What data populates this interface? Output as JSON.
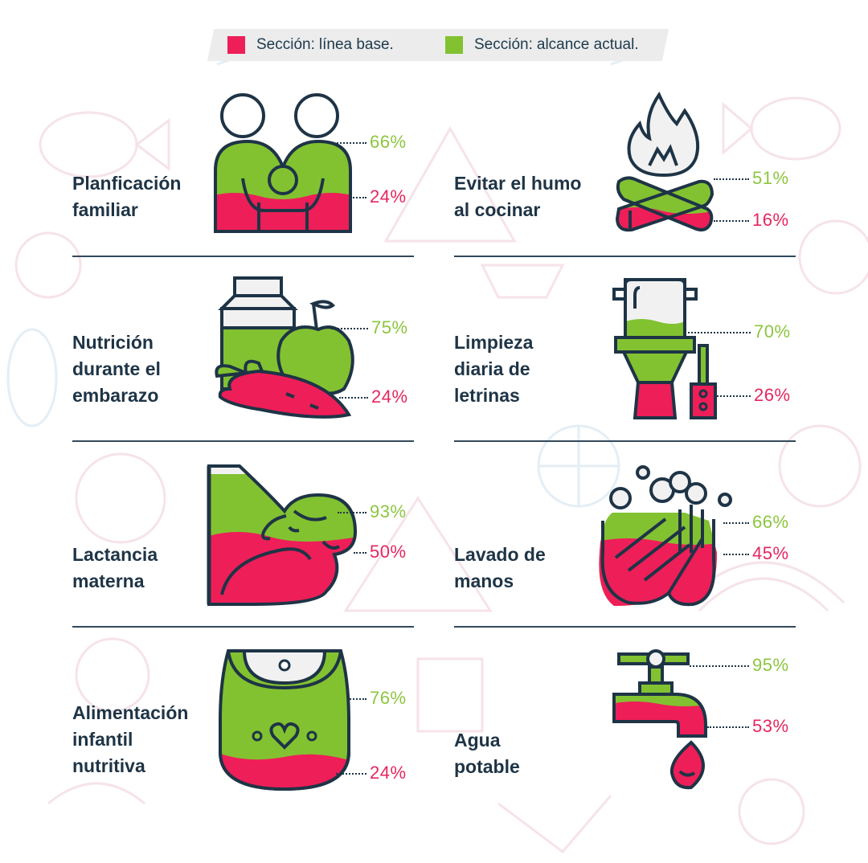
{
  "legend": [
    {
      "prefix": "Sección:",
      "rest": "línea base.",
      "color": "#ee1e58"
    },
    {
      "prefix": "Sección:",
      "rest": "alcance actual.",
      "color": "#82c231"
    }
  ],
  "colors": {
    "baseline": "#ee1e58",
    "current": "#82c231",
    "outline": "#1e3446",
    "baseline_text": "#e6265f",
    "current_text": "#8cc63f"
  },
  "chart_data": {
    "type": "bar",
    "series": [
      {
        "name": "línea base",
        "values": [
          24,
          16,
          24,
          26,
          50,
          45,
          24,
          53
        ]
      },
      {
        "name": "alcance actual",
        "values": [
          66,
          51,
          75,
          70,
          93,
          66,
          76,
          95
        ]
      }
    ],
    "categories": [
      "Planficación familiar",
      "Evitar el humo al cocinar",
      "Nutrición durante el embarazo",
      "Limpieza diaria de letrinas",
      "Lactancia materna",
      "Lavado de manos",
      "Alimentación infantil nutritiva",
      "Agua potable"
    ],
    "items": [
      {
        "label_lines": [
          "Planficación",
          "familiar"
        ],
        "icon": "couple-icon",
        "baseline": "24%",
        "current": "66%",
        "baseline_value": 24,
        "current_value": 66
      },
      {
        "label_lines": [
          "Evitar el humo",
          "al cocinar"
        ],
        "icon": "campfire-icon",
        "baseline": "16%",
        "current": "51%",
        "baseline_value": 16,
        "current_value": 51
      },
      {
        "label_lines": [
          "Nutrición",
          "durante el",
          "embarazo"
        ],
        "icon": "food-icon",
        "baseline": "24%",
        "current": "75%",
        "baseline_value": 24,
        "current_value": 75
      },
      {
        "label_lines": [
          "Limpieza",
          "diaria de",
          "letrinas"
        ],
        "icon": "toilet-icon",
        "baseline": "26%",
        "current": "70%",
        "baseline_value": 26,
        "current_value": 70
      },
      {
        "label_lines": [
          "Lactancia",
          "materna"
        ],
        "icon": "breastfeeding-icon",
        "baseline": "50%",
        "current": "93%",
        "baseline_value": 50,
        "current_value": 93
      },
      {
        "label_lines": [
          "Lavado de",
          "manos"
        ],
        "icon": "handwash-icon",
        "baseline": "45%",
        "current": "66%",
        "baseline_value": 45,
        "current_value": 66
      },
      {
        "label_lines": [
          "Alimentación",
          "infantil",
          "nutritiva"
        ],
        "icon": "bib-icon",
        "baseline": "24%",
        "current": "76%",
        "baseline_value": 24,
        "current_value": 76
      },
      {
        "label_lines": [
          "Agua",
          "potable"
        ],
        "icon": "faucet-icon",
        "baseline": "53%",
        "current": "95%",
        "baseline_value": 53,
        "current_value": 95
      }
    ]
  }
}
